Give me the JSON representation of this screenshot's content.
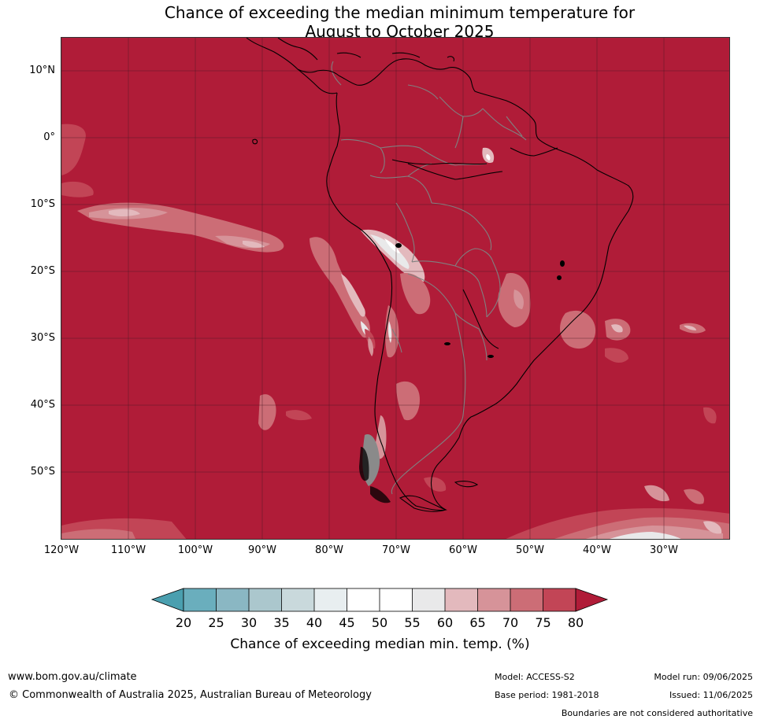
{
  "title_line1": "Chance of exceeding the median minimum temperature for",
  "title_line2": "August to October 2025",
  "colors": {
    "c80": "#b01c38",
    "c75": "#c24556",
    "c70": "#cc6d76",
    "c65": "#d69399",
    "c60": "#e3b9bd",
    "c55": "#e9e9ea",
    "c45": "#ffffff",
    "c40": "#e8eef0",
    "c35": "#c9d9dc",
    "c30": "#abc7cd",
    "c25": "#8ab7c3",
    "c20": "#6aaebd",
    "c_lo": "#4a9faf",
    "land_border": "#000000",
    "country_border": "#808080"
  },
  "lat_labels": [
    "10°N",
    "0°",
    "10°S",
    "20°S",
    "30°S",
    "40°S",
    "50°S"
  ],
  "lon_labels": [
    "120°W",
    "110°W",
    "100°W",
    "90°W",
    "80°W",
    "70°W",
    "60°W",
    "50°W",
    "40°W",
    "30°W"
  ],
  "colorbar": {
    "ticks": [
      "20",
      "25",
      "30",
      "35",
      "40",
      "45",
      "50",
      "55",
      "60",
      "65",
      "70",
      "75",
      "80"
    ],
    "label": "Chance of exceeding median min. temp. (%)"
  },
  "footer": {
    "website": "www.bom.gov.au/climate",
    "copyright": "© Commonwealth of Australia 2025, Australian Bureau of Meteorology",
    "model": "Model: ACCESS-S2",
    "base_period": "Base period: 1981-2018",
    "model_run": "Model run: 09/06/2025",
    "issued": "Issued: 11/06/2025",
    "disclaimer": "Boundaries are not considered authoritative"
  }
}
